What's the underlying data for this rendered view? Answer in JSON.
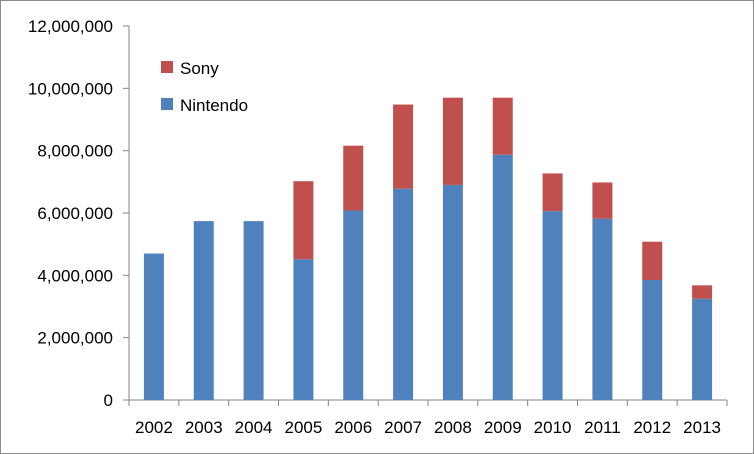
{
  "chart_data": {
    "type": "bar",
    "stacked": true,
    "categories": [
      "2002",
      "2003",
      "2004",
      "2005",
      "2006",
      "2007",
      "2008",
      "2009",
      "2010",
      "2011",
      "2012",
      "2013"
    ],
    "series": [
      {
        "name": "Nintendo",
        "color": "#4f81bd",
        "values": [
          4700000,
          5740000,
          5740000,
          4520000,
          6080000,
          6780000,
          6900000,
          7870000,
          6060000,
          5820000,
          3850000,
          3250000
        ]
      },
      {
        "name": "Sony",
        "color": "#c0504d",
        "values": [
          0,
          0,
          0,
          2500000,
          2080000,
          2700000,
          2800000,
          1830000,
          1210000,
          1160000,
          1230000,
          430000
        ]
      }
    ],
    "ylim": [
      0,
      12000000
    ],
    "ytick_step": 2000000,
    "ytick_labels": [
      "0",
      "2,000,000",
      "4,000,000",
      "6,000,000",
      "8,000,000",
      "10,000,000",
      "12,000,000"
    ],
    "grid": false,
    "legend": {
      "position": "top-left",
      "entries": [
        "Sony",
        "Nintendo"
      ]
    },
    "title": "",
    "xlabel": "",
    "ylabel": ""
  }
}
